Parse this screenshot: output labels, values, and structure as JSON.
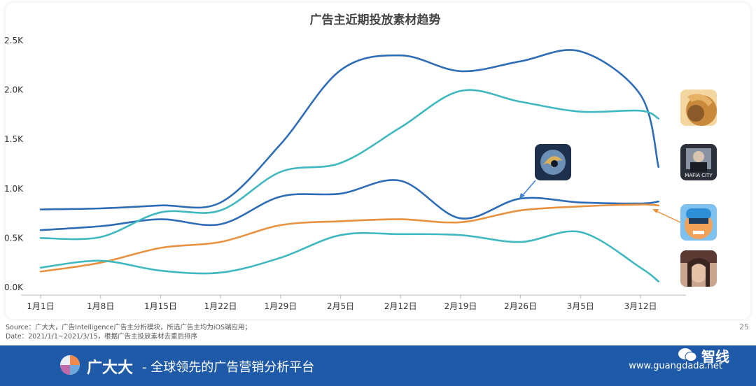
{
  "chart_data": {
    "type": "line",
    "title": "广告主近期投放素材趋势",
    "xlabel": "",
    "ylabel": "",
    "categories": [
      "1月1日",
      "1月8日",
      "1月15日",
      "1月22日",
      "1月29日",
      "2月5日",
      "2月12日",
      "2月19日",
      "2月26日",
      "3月5日",
      "3月12日"
    ],
    "y_ticks": [
      "0.0K",
      "0.5K",
      "1.0K",
      "1.5K",
      "2.0K",
      "2.5K"
    ],
    "ylim": [
      0,
      2500
    ],
    "grid": false,
    "legend": "app icons at right end of each line",
    "series": [
      {
        "color": "#2e6db5",
        "points": [
          [
            0,
            580
          ],
          [
            1,
            620
          ],
          [
            2,
            690
          ],
          [
            3,
            640
          ],
          [
            4,
            920
          ],
          [
            5,
            950
          ],
          [
            6,
            1080
          ],
          [
            7,
            700
          ],
          [
            8,
            900
          ],
          [
            9,
            860
          ],
          [
            10,
            850
          ],
          [
            10.3,
            870
          ]
        ]
      },
      {
        "color": "#2e6db5",
        "points": [
          [
            0,
            790
          ],
          [
            1,
            800
          ],
          [
            2,
            830
          ],
          [
            3,
            860
          ],
          [
            4,
            1450
          ],
          [
            5,
            2200
          ],
          [
            6,
            2350
          ],
          [
            7,
            2190
          ],
          [
            8,
            2290
          ],
          [
            9,
            2390
          ],
          [
            10,
            1950
          ],
          [
            10.3,
            1220
          ]
        ]
      },
      {
        "color": "#3fb8bf",
        "points": [
          [
            0,
            500
          ],
          [
            1,
            510
          ],
          [
            2,
            760
          ],
          [
            3,
            780
          ],
          [
            4,
            1170
          ],
          [
            5,
            1260
          ],
          [
            6,
            1620
          ],
          [
            7,
            1990
          ],
          [
            8,
            1880
          ],
          [
            9,
            1780
          ],
          [
            10,
            1790
          ],
          [
            10.3,
            1710
          ]
        ]
      },
      {
        "color": "#e8913f",
        "points": [
          [
            0,
            160
          ],
          [
            1,
            250
          ],
          [
            2,
            400
          ],
          [
            3,
            460
          ],
          [
            4,
            630
          ],
          [
            5,
            670
          ],
          [
            6,
            690
          ],
          [
            7,
            660
          ],
          [
            8,
            780
          ],
          [
            9,
            820
          ],
          [
            10,
            840
          ],
          [
            10.3,
            830
          ]
        ]
      },
      {
        "color": "#3fb8bf",
        "points": [
          [
            0,
            200
          ],
          [
            1,
            270
          ],
          [
            2,
            170
          ],
          [
            3,
            150
          ],
          [
            4,
            300
          ],
          [
            5,
            530
          ],
          [
            6,
            540
          ],
          [
            7,
            530
          ],
          [
            8,
            460
          ],
          [
            9,
            560
          ],
          [
            10,
            200
          ],
          [
            10.3,
            60
          ]
        ]
      }
    ]
  },
  "icons": [
    {
      "name": "strategy-game-icon",
      "colors": [
        "#c9893a",
        "#f4d7a0"
      ]
    },
    {
      "name": "mafia-city-icon",
      "colors": [
        "#2a2f3a",
        "#8892a0"
      ],
      "text": "MAFIA CITY"
    },
    {
      "name": "shooter-game-icon",
      "colors": [
        "#2f8fd6",
        "#f2a15a"
      ]
    },
    {
      "name": "warrior-game-icon",
      "colors": [
        "#5a3a32",
        "#c9a58f"
      ]
    },
    {
      "name": "dragon-game-icon",
      "colors": [
        "#1d2f4a",
        "#6b8fb5"
      ]
    }
  ],
  "source_lines": [
    "Source：广大大，广告Intelligence广告主分析模块，所选广告主均为iOS端应用；",
    "Date：2021/1/1~2021/3/15，根据广告主投放素材去重后排序"
  ],
  "page_number": "25",
  "footer": {
    "brand": "广大大",
    "tagline": "- 全球领先的广告营销分析平台",
    "url": "www.guangdada.net",
    "watermark": "智线"
  }
}
